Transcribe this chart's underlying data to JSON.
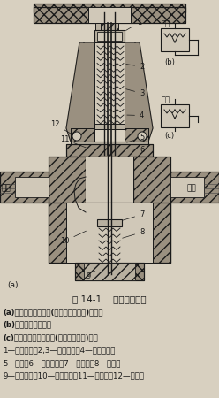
{
  "title": "图 14-1    直动式减压阀",
  "caption_lines": [
    "(a)带溢流阀的减压阀(简称溢流减压阀)结构；",
    "(b)溢流减压阀符号；",
    "(c)不带溢流阀的减压阀(即普通减压阀)符号",
    "1—调节旋钮；2,3—调压弹簧；4—溢流阀座；",
    "5—膜片；6—膜片气室；7—阻尼管；8—阀芯；",
    "9—复位弹簧；10—进气阀口；11—排气孔；12—溢流孔"
  ],
  "bg_color": "#d8d0c0",
  "fig_width": 2.48,
  "fig_height": 4.5,
  "dpi": 100,
  "lc": "#1a1a1a",
  "hatch_color": "#555555"
}
